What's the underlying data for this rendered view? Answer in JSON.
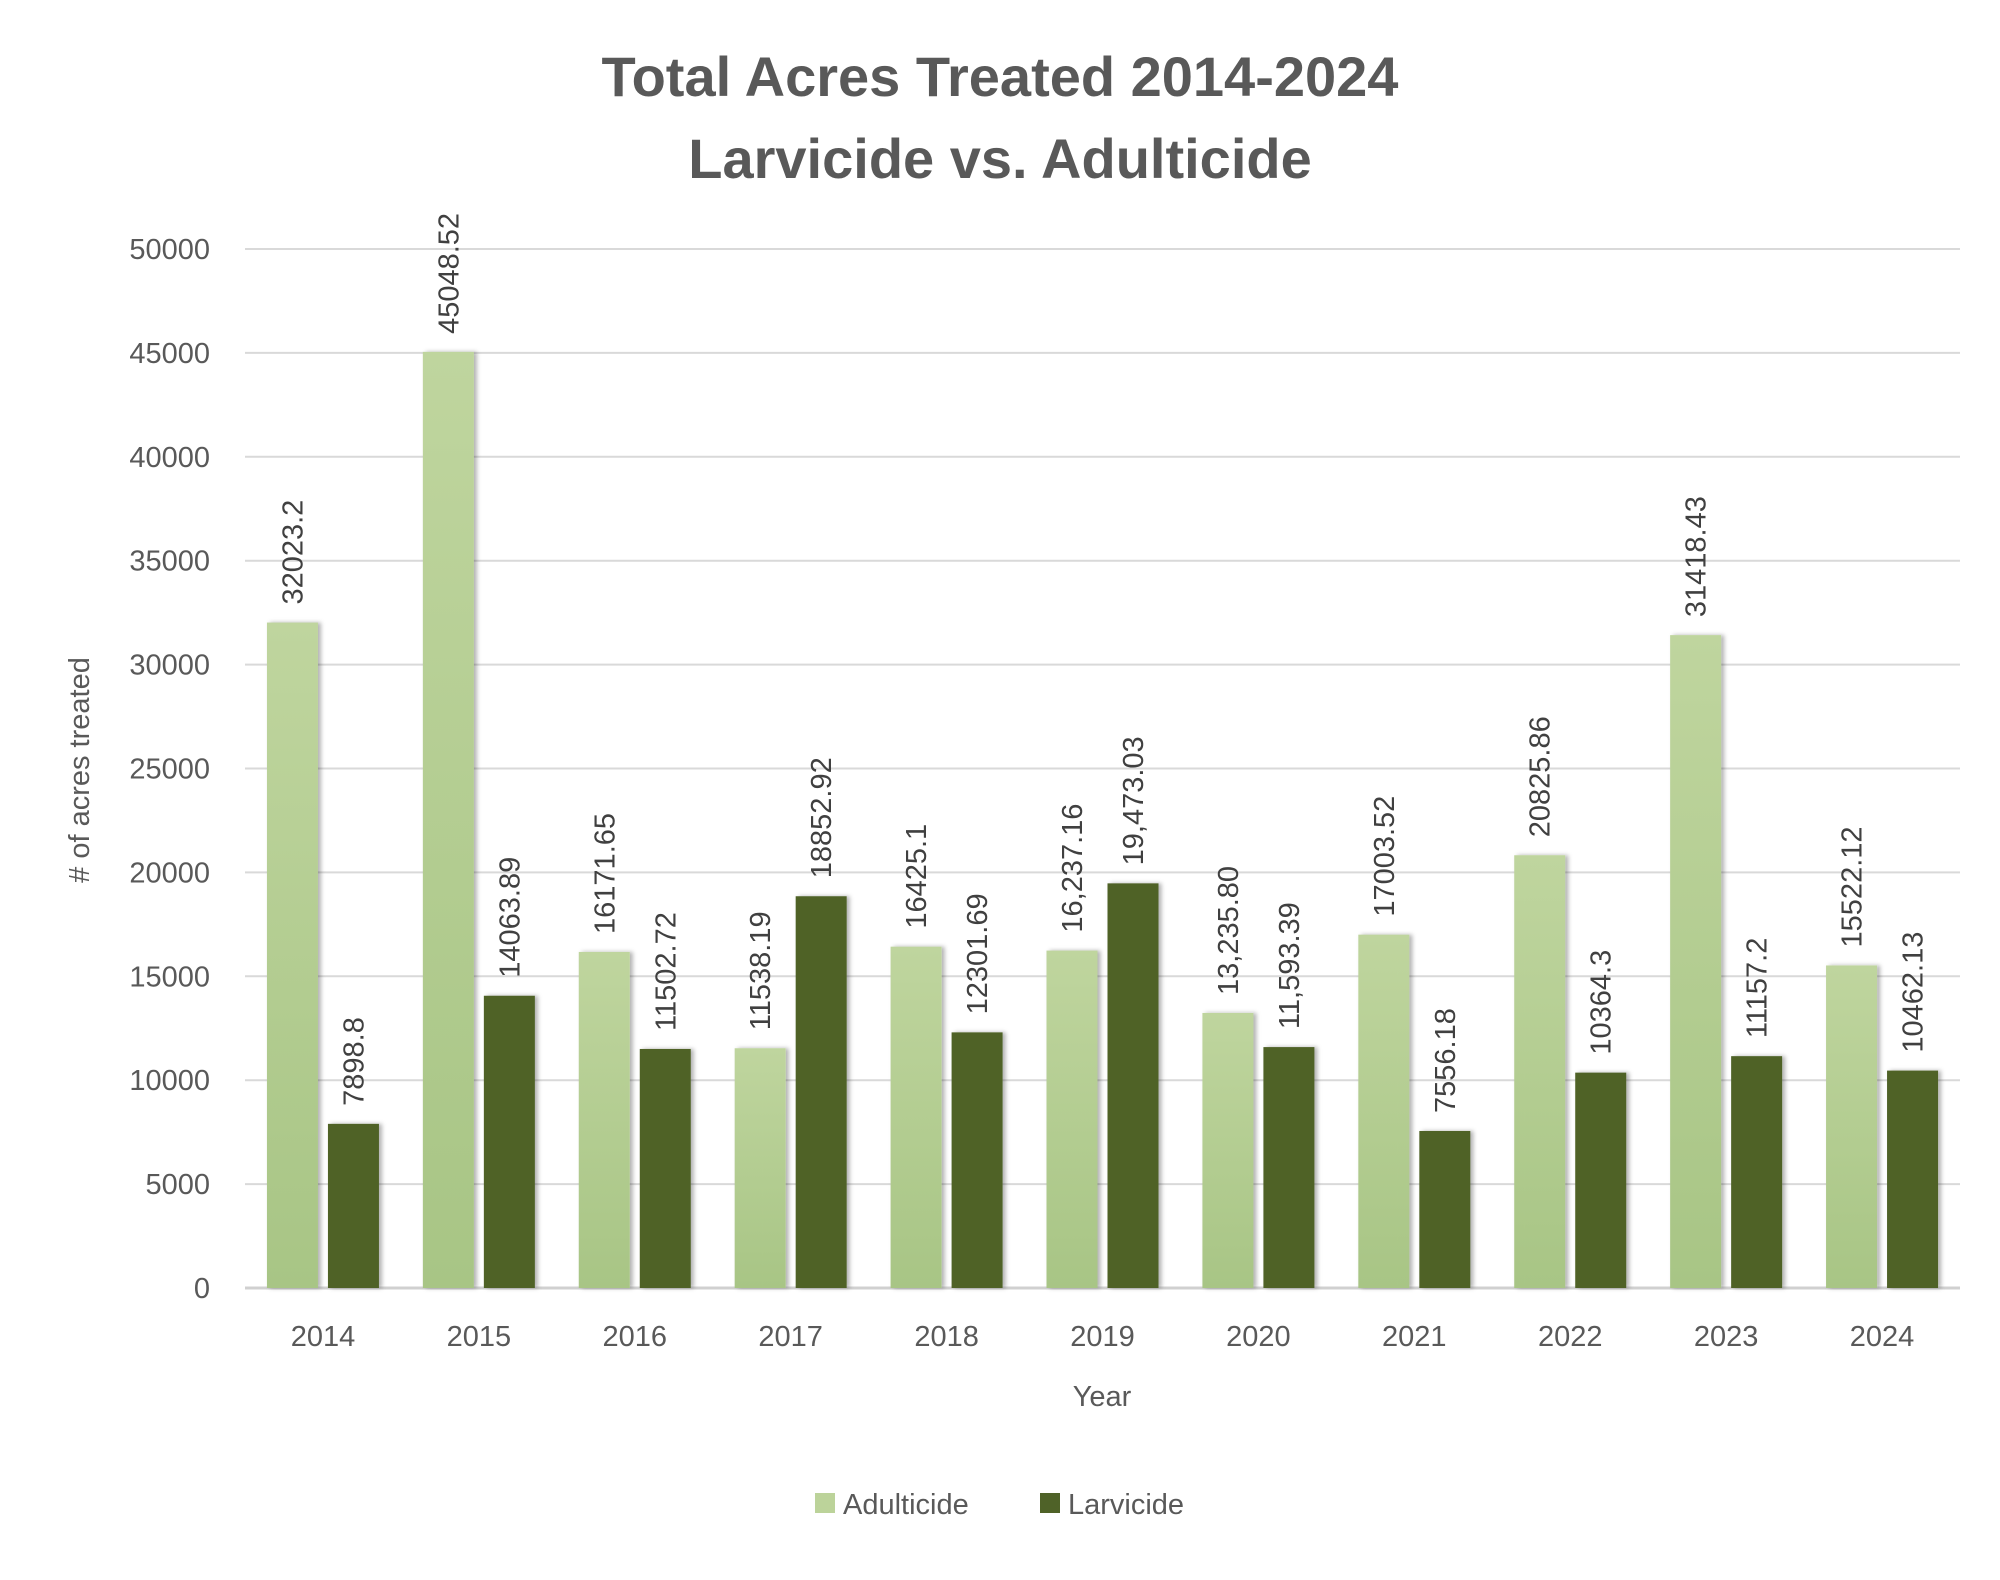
{
  "chart_data": {
    "type": "bar",
    "title": [
      "Total Acres Treated 2014-2024",
      "Larvicide vs. Adulticide"
    ],
    "xlabel": "Year",
    "ylabel": "# of acres treated",
    "ylim": [
      0,
      50000
    ],
    "yticks": [
      0,
      5000,
      10000,
      15000,
      20000,
      25000,
      30000,
      35000,
      40000,
      45000,
      50000
    ],
    "grid": true,
    "legend_position": "bottom",
    "categories": [
      "2014",
      "2015",
      "2016",
      "2017",
      "2018",
      "2019",
      "2020",
      "2021",
      "2022",
      "2023",
      "2024"
    ],
    "series": [
      {
        "name": "Adulticide",
        "color": "#BCD39A",
        "values": [
          32023.2,
          45048.52,
          16171.65,
          11538.19,
          16425.1,
          16237.16,
          13235.8,
          17003.52,
          20825.86,
          31418.43,
          15522.12
        ],
        "labels": [
          "32023.2",
          "45048.52",
          "16171.65",
          "11538.19",
          "16425.1",
          "16,237.16",
          "13,235.80",
          "17003.52",
          "20825.86",
          "31418.43",
          "15522.12"
        ]
      },
      {
        "name": "Larvicide",
        "color": "#4F6228",
        "values": [
          7898.8,
          14063.89,
          11502.72,
          18852.92,
          12301.69,
          19473.03,
          11593.39,
          7556.18,
          10364.3,
          11157.2,
          10462.13
        ],
        "labels": [
          "7898.8",
          "14063.89",
          "11502.72",
          "18852.92",
          "12301.69",
          "19,473.03",
          "11,593.39",
          "7556.18",
          "10364.3",
          "11157.2",
          "10462.13"
        ]
      }
    ]
  }
}
